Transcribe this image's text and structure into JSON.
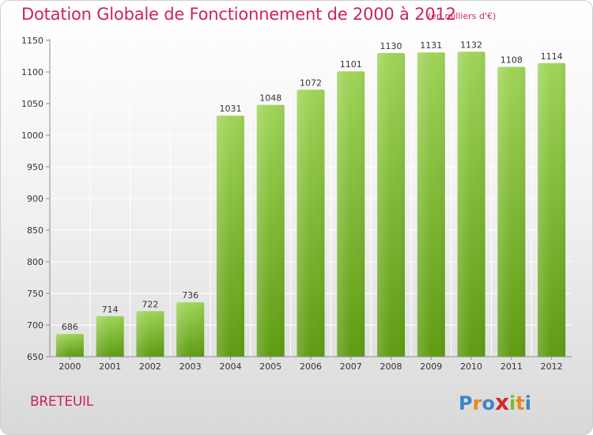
{
  "header": {
    "title": "Dotation Globale de Fonctionnement de 2000 à 2012",
    "unit_note": "(en milliers d'€)"
  },
  "commune": "BRETEUIL",
  "logo": {
    "text": "Proxiti",
    "letters": [
      {
        "char": "P",
        "color": "#3a86c8"
      },
      {
        "char": "r",
        "color": "#e58a1f"
      },
      {
        "char": "o",
        "color": "#3a86c8"
      },
      {
        "char": "x",
        "color": "#d6282f"
      },
      {
        "char": "i",
        "color": "#7dbb2e"
      },
      {
        "char": "t",
        "color": "#e58a1f"
      },
      {
        "char": "i",
        "color": "#3a86c8"
      }
    ]
  },
  "colors": {
    "title": "#cc2266",
    "bar_top": "#9fd458",
    "bar_bottom": "#5e9c12",
    "grid": "#ffffff",
    "axis": "#8c8c8c"
  },
  "chart_data": {
    "type": "bar",
    "title": "Dotation Globale de Fonctionnement de 2000 à 2012",
    "subtitle": "(en milliers d'€)",
    "xlabel": "",
    "ylabel": "",
    "categories": [
      "2000",
      "2001",
      "2002",
      "2003",
      "2004",
      "2005",
      "2006",
      "2007",
      "2008",
      "2009",
      "2010",
      "2011",
      "2012"
    ],
    "values": [
      686,
      714,
      722,
      736,
      1031,
      1048,
      1072,
      1101,
      1130,
      1131,
      1132,
      1108,
      1114
    ],
    "ylim": [
      650,
      1150
    ],
    "yticks": [
      650,
      700,
      750,
      800,
      850,
      900,
      950,
      1000,
      1050,
      1100,
      1150
    ],
    "grid": true,
    "legend": "none"
  }
}
